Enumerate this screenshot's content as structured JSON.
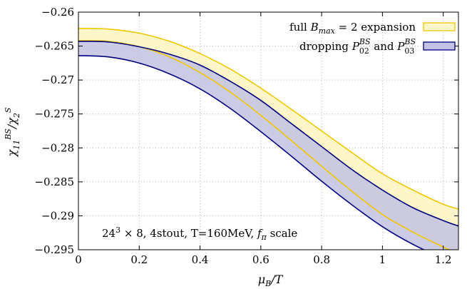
{
  "chart_data": {
    "type": "area",
    "title": "",
    "xlabel": "μ_B/T",
    "ylabel": "χ_11^BS/χ_2^S",
    "xlim": [
      0,
      1.25
    ],
    "ylim": [
      -0.295,
      -0.26
    ],
    "xticks": [
      0,
      0.2,
      0.4,
      0.6,
      0.8,
      1,
      1.2
    ],
    "xtick_labels": [
      "0",
      "0.2",
      "0.4",
      "0.6",
      "0.8",
      "1",
      "1.2"
    ],
    "yticks": [
      -0.26,
      -0.265,
      -0.27,
      -0.275,
      -0.28,
      -0.285,
      -0.29,
      -0.295
    ],
    "ytick_labels": [
      "−0.26",
      "−0.265",
      "−0.27",
      "−0.275",
      "−0.28",
      "−0.285",
      "−0.29",
      "−0.295"
    ],
    "grid": true,
    "legend_position": "top-right",
    "annotation": "24³ × 8, 4stout, T=160MeV, f_π scale",
    "series": [
      {
        "name": "full B_max = 2 expansion",
        "color": "#f0c800",
        "fill": "#fdf6c8",
        "x": [
          0,
          0.1,
          0.2,
          0.3,
          0.4,
          0.5,
          0.6,
          0.7,
          0.8,
          0.9,
          1.0,
          1.1,
          1.2,
          1.25
        ],
        "upper": [
          -0.2624,
          -0.2625,
          -0.2631,
          -0.2643,
          -0.2661,
          -0.2684,
          -0.2712,
          -0.2743,
          -0.2775,
          -0.2807,
          -0.2838,
          -0.2862,
          -0.2883,
          -0.289
        ],
        "lower": [
          -0.2642,
          -0.2643,
          -0.2651,
          -0.2666,
          -0.2689,
          -0.2718,
          -0.2752,
          -0.2789,
          -0.2827,
          -0.2864,
          -0.2898,
          -0.2924,
          -0.2946,
          -0.2956
        ]
      },
      {
        "name": "dropping P_02^BS and P_03^BS",
        "color": "#00007f",
        "fill": "#c2c2e2",
        "x": [
          0,
          0.1,
          0.2,
          0.3,
          0.4,
          0.5,
          0.6,
          0.7,
          0.8,
          0.9,
          1.0,
          1.1,
          1.2,
          1.25
        ],
        "upper": [
          -0.2643,
          -0.2644,
          -0.2651,
          -0.2662,
          -0.2678,
          -0.2702,
          -0.273,
          -0.2764,
          -0.2798,
          -0.2832,
          -0.2862,
          -0.2888,
          -0.2907,
          -0.2915
        ],
        "lower": [
          -0.2664,
          -0.2666,
          -0.2675,
          -0.2691,
          -0.2713,
          -0.2742,
          -0.2776,
          -0.2812,
          -0.2849,
          -0.2884,
          -0.2916,
          -0.2942,
          -0.2963,
          -0.2972
        ]
      }
    ]
  }
}
